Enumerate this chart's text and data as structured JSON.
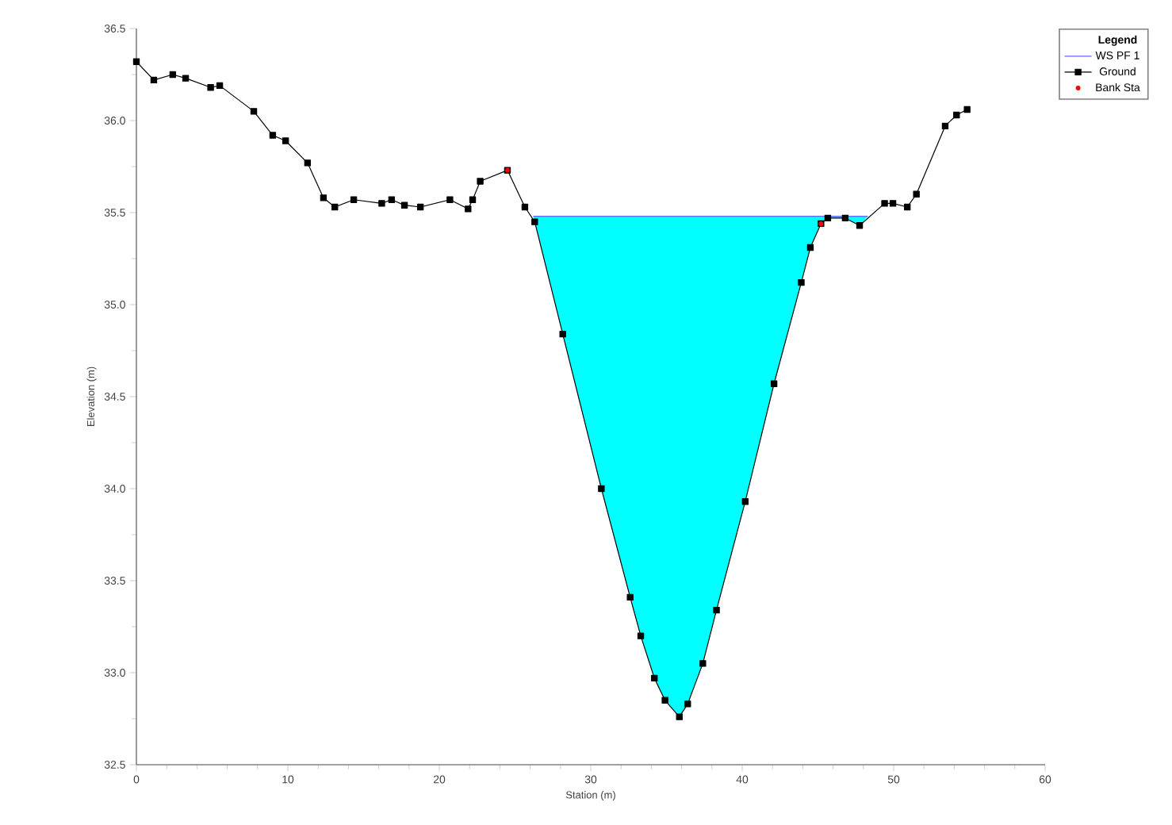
{
  "chart_data": {
    "type": "line",
    "xlabel": "Station (m)",
    "ylabel": "Elevation (m)",
    "legend_title": "Legend",
    "legend": "top right",
    "xlim": [
      0,
      60
    ],
    "xticks": [
      0,
      10,
      20,
      30,
      40,
      50,
      60
    ],
    "ylim": [
      32.5,
      36.5
    ],
    "yticks": [
      32.5,
      {
        "value": 33,
        "label": "33.0"
      },
      33.5,
      {
        "value": 34,
        "label": "34.0"
      },
      34.5,
      {
        "value": 35,
        "label": "35.0"
      },
      35.5,
      {
        "value": 36,
        "label": "36.0"
      },
      36.5
    ],
    "grid": false,
    "series": [
      {
        "name": "WS PF 1",
        "type": "line",
        "color": "#6464ff",
        "marker": "none",
        "x": [
          26.2,
          26.3,
          28.15,
          30.7,
          32.6,
          33.3,
          34.2,
          34.9,
          35.85,
          36.4,
          37.4,
          38.3,
          40.2,
          42.1,
          43.9,
          44.5,
          45.2,
          45.65,
          46.8,
          47.75,
          48.3
        ],
        "values": [
          35.48,
          35.48,
          35.48,
          35.48,
          35.48,
          35.48,
          35.48,
          35.48,
          35.48,
          35.48,
          35.48,
          35.48,
          35.48,
          35.48,
          35.48,
          35.48,
          35.48,
          35.48,
          35.48,
          35.48,
          35.48
        ],
        "upper": [
          35.48,
          35.48,
          35.48,
          35.48,
          35.48,
          35.48,
          35.48,
          35.48,
          35.48,
          35.48,
          35.48,
          35.48,
          35.48,
          35.48,
          35.48,
          35.48,
          35.48,
          35.48,
          35.48,
          35.48,
          35.48
        ],
        "lower": [
          35.48,
          35.45,
          34.84,
          34.0,
          33.41,
          33.2,
          32.97,
          32.85,
          32.76,
          32.83,
          33.05,
          33.34,
          33.93,
          34.57,
          35.12,
          35.31,
          35.44,
          35.47,
          35.47,
          35.43,
          35.48
        ]
      },
      {
        "name": "Ground",
        "color": "#000000",
        "marker": "square",
        "x": [
          0,
          1.15,
          2.4,
          3.25,
          4.9,
          5.5,
          7.75,
          9.0,
          9.85,
          11.3,
          12.35,
          13.1,
          14.35,
          16.2,
          16.85,
          17.7,
          18.75,
          20.7,
          21.9,
          22.2,
          22.7,
          24.5,
          25.65,
          26.3,
          28.15,
          30.7,
          32.6,
          33.3,
          34.2,
          34.9,
          35.85,
          36.4,
          37.4,
          38.3,
          40.2,
          42.1,
          43.9,
          44.5,
          45.2,
          45.65,
          46.8,
          47.75,
          49.4,
          49.95,
          50.9,
          51.5,
          53.4,
          54.15,
          54.85
        ],
        "values": [
          36.32,
          36.22,
          36.25,
          36.23,
          36.18,
          36.19,
          36.05,
          35.92,
          35.89,
          35.77,
          35.58,
          35.53,
          35.57,
          35.55,
          35.57,
          35.54,
          35.53,
          35.57,
          35.52,
          35.57,
          35.67,
          35.73,
          35.53,
          35.45,
          34.84,
          34.0,
          33.41,
          33.2,
          32.97,
          32.85,
          32.76,
          32.83,
          33.05,
          33.34,
          33.93,
          34.57,
          35.12,
          35.31,
          35.44,
          35.47,
          35.47,
          35.43,
          35.55,
          35.55,
          35.53,
          35.6,
          35.97,
          36.03,
          36.06
        ]
      },
      {
        "name": "Bank Sta",
        "type": "scatter",
        "color": "#ff0000",
        "marker": "circle",
        "x": [
          24.5,
          45.2
        ],
        "values": [
          35.73,
          35.44
        ]
      }
    ]
  }
}
